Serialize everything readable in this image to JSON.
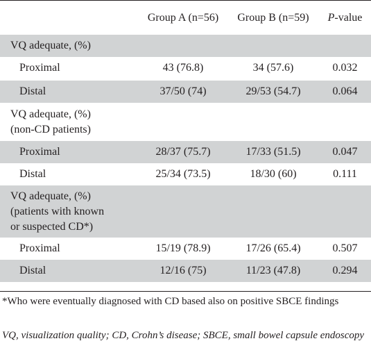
{
  "header": {
    "col_a": "Group A (n=56)",
    "col_b": "Group B (n=59)",
    "col_p_italic": "P",
    "col_p_rest": "-value"
  },
  "sections": [
    {
      "title": "VQ adequate, (%)",
      "rows": [
        {
          "label": "Proximal",
          "a": "43 (76.8)",
          "b": "34 (57.6)",
          "p": "0.032"
        },
        {
          "label": "Distal",
          "a": "37/50 (74)",
          "b": "29/53 (54.7)",
          "p": "0.064"
        }
      ]
    },
    {
      "title_line1": "VQ adequate, (%)",
      "title_line2": "(non-CD patients)",
      "rows": [
        {
          "label": "Proximal",
          "a": "28/37 (75.7)",
          "b": "17/33 (51.5)",
          "p": "0.047"
        },
        {
          "label": "Distal",
          "a": "25/34 (73.5)",
          "b": "18/30 (60)",
          "p": "0.111"
        }
      ]
    },
    {
      "title_line1": "VQ adequate, (%)",
      "title_line2": "(patients with known",
      "title_line3": "or suspected CD*)",
      "rows": [
        {
          "label": "Proximal",
          "a": "15/19 (78.9)",
          "b": "17/26 (65.4)",
          "p": "0.507"
        },
        {
          "label": "Distal",
          "a": "12/16 (75)",
          "b": "11/23 (47.8)",
          "p": "0.294"
        }
      ]
    }
  ],
  "footnotes": {
    "asterisk": "*Who were eventually diagnosed with CD based also on positive SBCE findings",
    "abbreviations": "VQ, visualization quality; CD, Crohn’s disease; SBCE, small bowel capsule endoscopy"
  }
}
